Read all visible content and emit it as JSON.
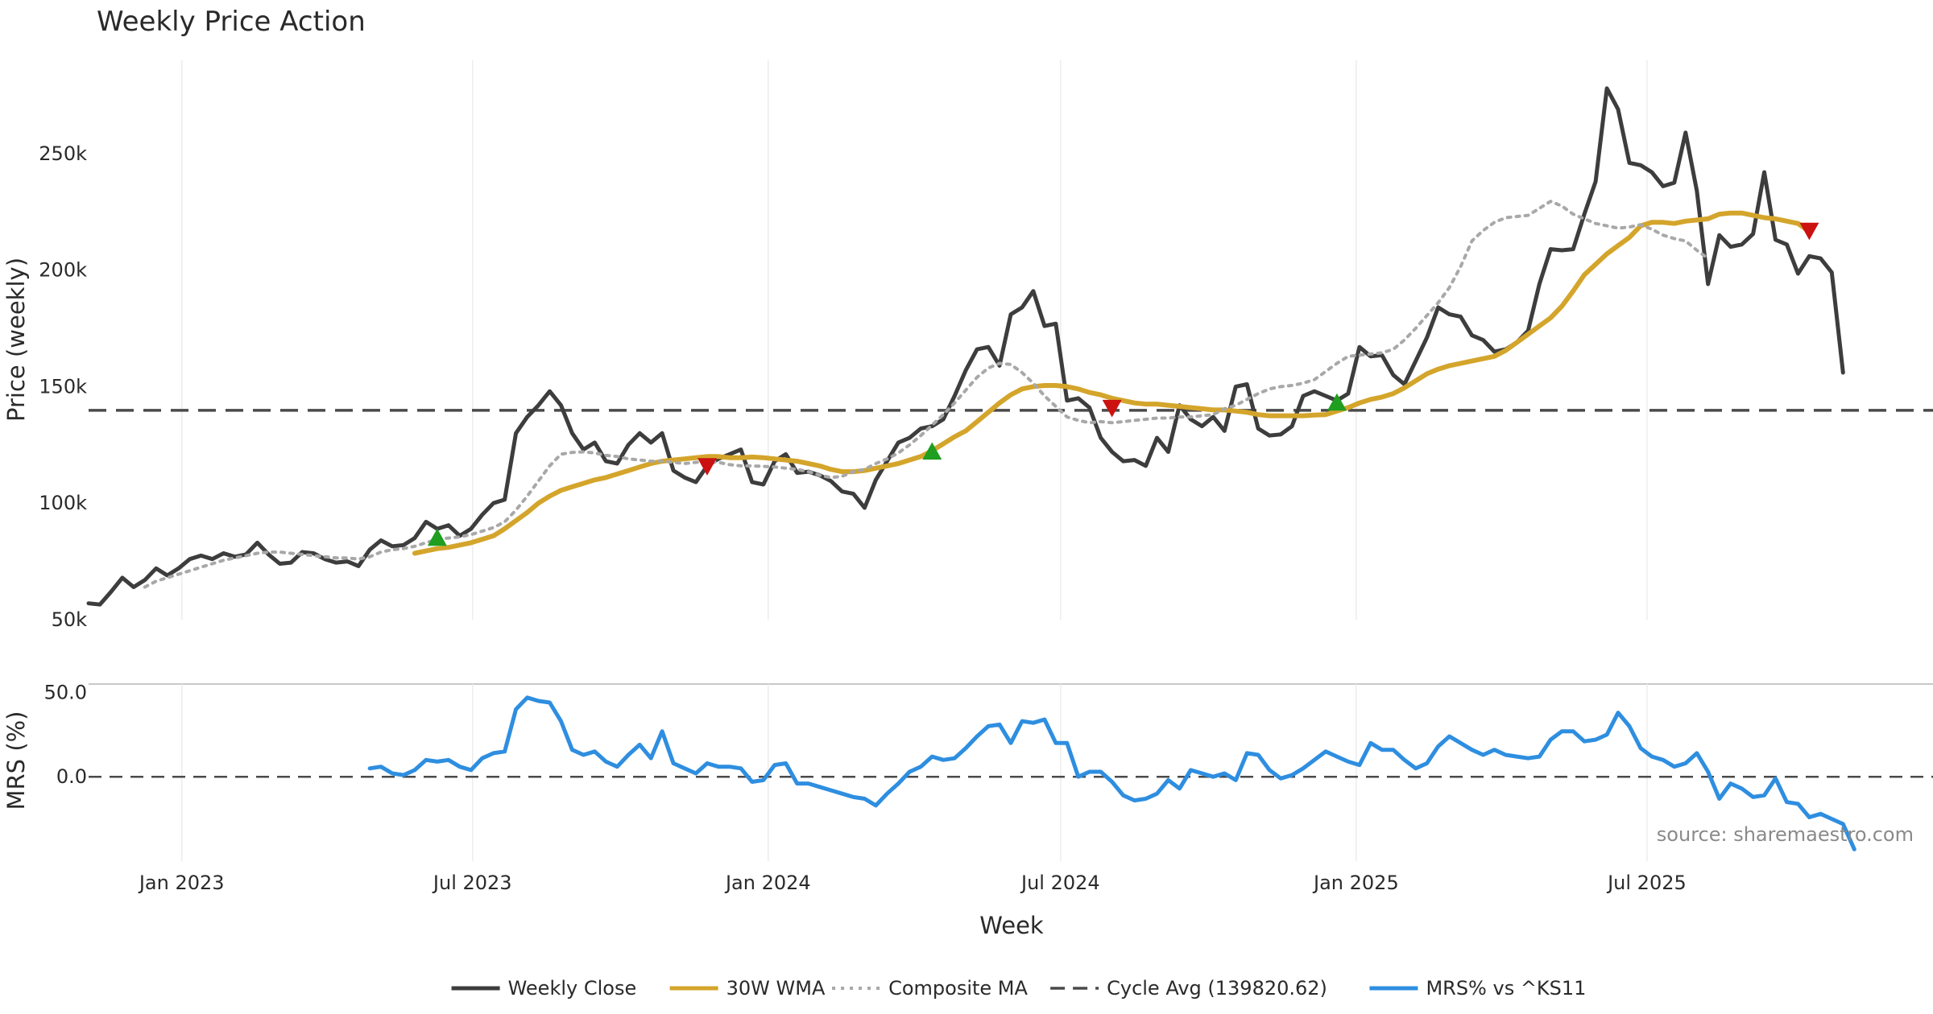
{
  "chart_data": {
    "type": "line",
    "title": "Weekly Price Action",
    "xlabel": "Week",
    "x_ticks": [
      "Jan 2023",
      "Jul 2023",
      "Jan 2024",
      "Jul 2024",
      "Jan 2025",
      "Jul 2025"
    ],
    "x_start": "2022-11-04",
    "x_range": [
      "2022-11-04",
      "2025-12-26"
    ],
    "annotation": "source: sharemaestro.com",
    "panels": [
      {
        "ylabel": "Price (weekly)",
        "ylim": [
          50000,
          290000
        ],
        "y_ticks": [
          {
            "value": 50000,
            "label": "50k"
          },
          {
            "value": 100000,
            "label": "100k"
          },
          {
            "value": 150000,
            "label": "150k"
          },
          {
            "value": 200000,
            "label": "200k"
          },
          {
            "value": 250000,
            "label": "250k"
          }
        ],
        "grid": "vertical",
        "series": [
          {
            "name": "Weekly Close",
            "color": "#3d3d3d",
            "style": "solid",
            "width": 5,
            "start_index": 0,
            "values": [
              57000,
              56500,
              62000,
              68000,
              64000,
              67000,
              72000,
              69000,
              72000,
              76000,
              77500,
              76000,
              78500,
              77000,
              78000,
              83000,
              78000,
              74000,
              74500,
              79000,
              78500,
              76000,
              74500,
              75000,
              73000,
              80000,
              84000,
              81500,
              82000,
              85000,
              92000,
              89000,
              90500,
              86000,
              89000,
              95000,
              100000,
              101500,
              130000,
              137000,
              142000,
              148000,
              142000,
              130000,
              123000,
              126000,
              118000,
              117000,
              125000,
              130000,
              126000,
              130000,
              114000,
              111000,
              109000,
              116000,
              119000,
              121000,
              123000,
              109000,
              108000,
              118000,
              121000,
              113000,
              113500,
              112000,
              109500,
              105000,
              104000,
              98000,
              110000,
              118000,
              126000,
              128000,
              132000,
              133000,
              136000,
              146000,
              157000,
              166000,
              167000,
              159000,
              181000,
              184000,
              191000,
              176000,
              177000,
              144000,
              145000,
              141000,
              128000,
              122000,
              118000,
              118500,
              116000,
              128000,
              122000,
              142000,
              136000,
              133000,
              137000,
              131000,
              150000,
              151000,
              132000,
              129000,
              129500,
              133000,
              146000,
              148000,
              146000,
              144000,
              147000,
              167000,
              163000,
              163500,
              155000,
              151000,
              161000,
              171000,
              184000,
              181000,
              180000,
              172000,
              170000,
              165000,
              166000,
              169000,
              174000,
              194000,
              209000,
              208500,
              209000,
              224000,
              238000,
              278000,
              269000,
              246000,
              245000,
              242000,
              236000,
              237500,
              259000,
              234000,
              194000,
              215000,
              210000,
              211000,
              215500,
              242000,
              213000,
              211000,
              198500,
              206000,
              205000,
              199000,
              156000
            ]
          },
          {
            "name": "30W WMA",
            "color": "#d4a52b",
            "style": "solid",
            "width": 6,
            "start_index": 29,
            "values": [
              78500,
              79500,
              80500,
              81000,
              82000,
              83000,
              84500,
              86000,
              89000,
              92500,
              96000,
              100000,
              103000,
              105500,
              107000,
              108500,
              110000,
              111000,
              112500,
              114000,
              115500,
              117000,
              118000,
              118500,
              119000,
              119500,
              120000,
              120000,
              119500,
              119500,
              119800,
              119500,
              119000,
              118500,
              118000,
              117000,
              116000,
              114500,
              113500,
              113500,
              114000,
              115000,
              116000,
              117000,
              118500,
              120000,
              122500,
              125500,
              128500,
              131000,
              135000,
              139000,
              143000,
              146500,
              149000,
              150000,
              150500,
              150500,
              150000,
              149000,
              147500,
              146500,
              145000,
              144000,
              143000,
              142500,
              142500,
              142000,
              141500,
              141000,
              140500,
              140000,
              140000,
              139500,
              139000,
              138000,
              137500,
              137500,
              137500,
              137500,
              137800,
              138000,
              139500,
              141000,
              143000,
              144500,
              145500,
              147000,
              149500,
              152500,
              155500,
              157500,
              159000,
              160000,
              161000,
              162000,
              163000,
              165500,
              169000,
              172500,
              176000,
              179500,
              184500,
              191000,
              198000,
              202500,
              207000,
              210500,
              214000,
              219000,
              220500,
              220500,
              220000,
              221000,
              221500,
              222000,
              224000,
              224500,
              224500,
              223500,
              222500,
              222000,
              221000,
              220000,
              216500
            ]
          },
          {
            "name": "Composite MA",
            "color": "#a8a8a8",
            "style": "dotted",
            "width": 4,
            "start_index": 5,
            "values": [
              64000,
              66500,
              68000,
              69500,
              71000,
              72500,
              74000,
              75500,
              76500,
              77500,
              78500,
              79000,
              79000,
              78500,
              78000,
              77500,
              77000,
              76500,
              76500,
              76000,
              77000,
              79000,
              80000,
              80500,
              81500,
              83000,
              84500,
              85000,
              85500,
              86500,
              88000,
              89500,
              92000,
              97000,
              103000,
              109500,
              116000,
              121000,
              121800,
              122000,
              121500,
              120500,
              120000,
              119000,
              118500,
              118000,
              118000,
              117500,
              117000,
              117500,
              118000,
              117500,
              116500,
              116000,
              116000,
              115800,
              115500,
              115000,
              114500,
              113500,
              112000,
              111000,
              111500,
              113500,
              114500,
              117000,
              119000,
              121500,
              125000,
              129000,
              133500,
              138000,
              143000,
              148500,
              154000,
              158000,
              160000,
              159500,
              156000,
              151500,
              146000,
              141500,
              137000,
              135500,
              134500,
              135000,
              134500,
              135000,
              135500,
              136000,
              136500,
              136500,
              137000,
              137000,
              137500,
              138000,
              140500,
              142000,
              144500,
              147000,
              149000,
              150000,
              150500,
              151500,
              153000,
              156500,
              160000,
              163000,
              163500,
              164000,
              164500,
              166000,
              170000,
              175000,
              180500,
              186000,
              192500,
              201500,
              212500,
              217000,
              220500,
              222500,
              223000,
              223500,
              226500,
              229500,
              227500,
              224000,
              222000,
              220000,
              219000,
              218000,
              218500,
              219500,
              217500,
              215000,
              213500,
              212500,
              208500,
              205000
            ]
          }
        ],
        "reference_line": {
          "name": "Cycle Avg (139820.62)",
          "value": 139820.62,
          "color": "#4a4a4a",
          "style": "dashed"
        },
        "markers": [
          {
            "type": "buy",
            "shape": "triangle-up",
            "color": "#1f9e1f",
            "x_index": 31,
            "y": 85000
          },
          {
            "type": "sell",
            "shape": "triangle-down",
            "color": "#cc1111",
            "x_index": 55,
            "y": 116000
          },
          {
            "type": "buy",
            "shape": "triangle-up",
            "color": "#1f9e1f",
            "x_index": 75,
            "y": 122000
          },
          {
            "type": "sell",
            "shape": "triangle-down",
            "color": "#cc1111",
            "x_index": 91,
            "y": 141000
          },
          {
            "type": "buy",
            "shape": "triangle-up",
            "color": "#1f9e1f",
            "x_index": 111,
            "y": 143000
          },
          {
            "type": "sell",
            "shape": "triangle-down",
            "color": "#cc1111",
            "x_index": 153,
            "y": 217000
          }
        ]
      },
      {
        "ylabel": "MRS (%)",
        "ylim": [
          -50,
          55
        ],
        "y_ticks": [
          {
            "value": 0,
            "label": "0.0"
          },
          {
            "value": 50,
            "label": "50.0"
          }
        ],
        "grid": "vertical",
        "series": [
          {
            "name": "MRS% vs ^KS11",
            "color": "#2e8ee0",
            "style": "solid",
            "width": 5,
            "start_index": 25,
            "values": [
              5,
              6,
              2,
              1,
              4,
              10,
              9,
              10,
              6,
              4,
              11,
              14,
              15,
              40,
              47,
              45,
              44,
              33,
              16,
              13,
              15,
              9,
              6,
              13,
              19,
              11,
              27,
              8,
              5,
              2,
              8,
              6,
              6,
              5,
              -3,
              -2,
              7,
              8,
              -4,
              -4,
              -6,
              -8,
              -10,
              -12,
              -13,
              -17,
              -10,
              -4,
              3,
              6,
              12,
              10,
              11,
              17,
              24,
              30,
              31,
              20,
              33,
              32,
              34,
              20,
              20,
              0,
              3,
              3,
              -3,
              -11,
              -14,
              -13,
              -10,
              -2,
              -7,
              4,
              2,
              0,
              2,
              -2,
              14,
              13,
              4,
              -1,
              1,
              5,
              10,
              15,
              12,
              9,
              7,
              20,
              16,
              16,
              10,
              5,
              8,
              18,
              24,
              20,
              16,
              13,
              16,
              13,
              12,
              11,
              12,
              22,
              27,
              27,
              21,
              22,
              25,
              38,
              30,
              17,
              12,
              10,
              6,
              8,
              14,
              3,
              -13,
              -4,
              -7,
              -12,
              -11,
              -1,
              -15,
              -16,
              -24,
              -22,
              -25,
              -28,
              -43
            ]
          }
        ],
        "reference_line": {
          "value": 0,
          "color": "#4a4a4a",
          "style": "dashed"
        }
      }
    ],
    "legend": {
      "placement": "bottom-center",
      "entries": [
        {
          "label": "Weekly Close",
          "color": "#3d3d3d",
          "style": "solid"
        },
        {
          "label": "30W WMA",
          "color": "#d4a52b",
          "style": "solid"
        },
        {
          "label": "Composite MA",
          "color": "#a8a8a8",
          "style": "dotted"
        },
        {
          "label": "Cycle Avg (139820.62)",
          "color": "#4a4a4a",
          "style": "dashed"
        },
        {
          "label": "MRS% vs ^KS11",
          "color": "#2e8ee0",
          "style": "solid"
        }
      ]
    }
  }
}
